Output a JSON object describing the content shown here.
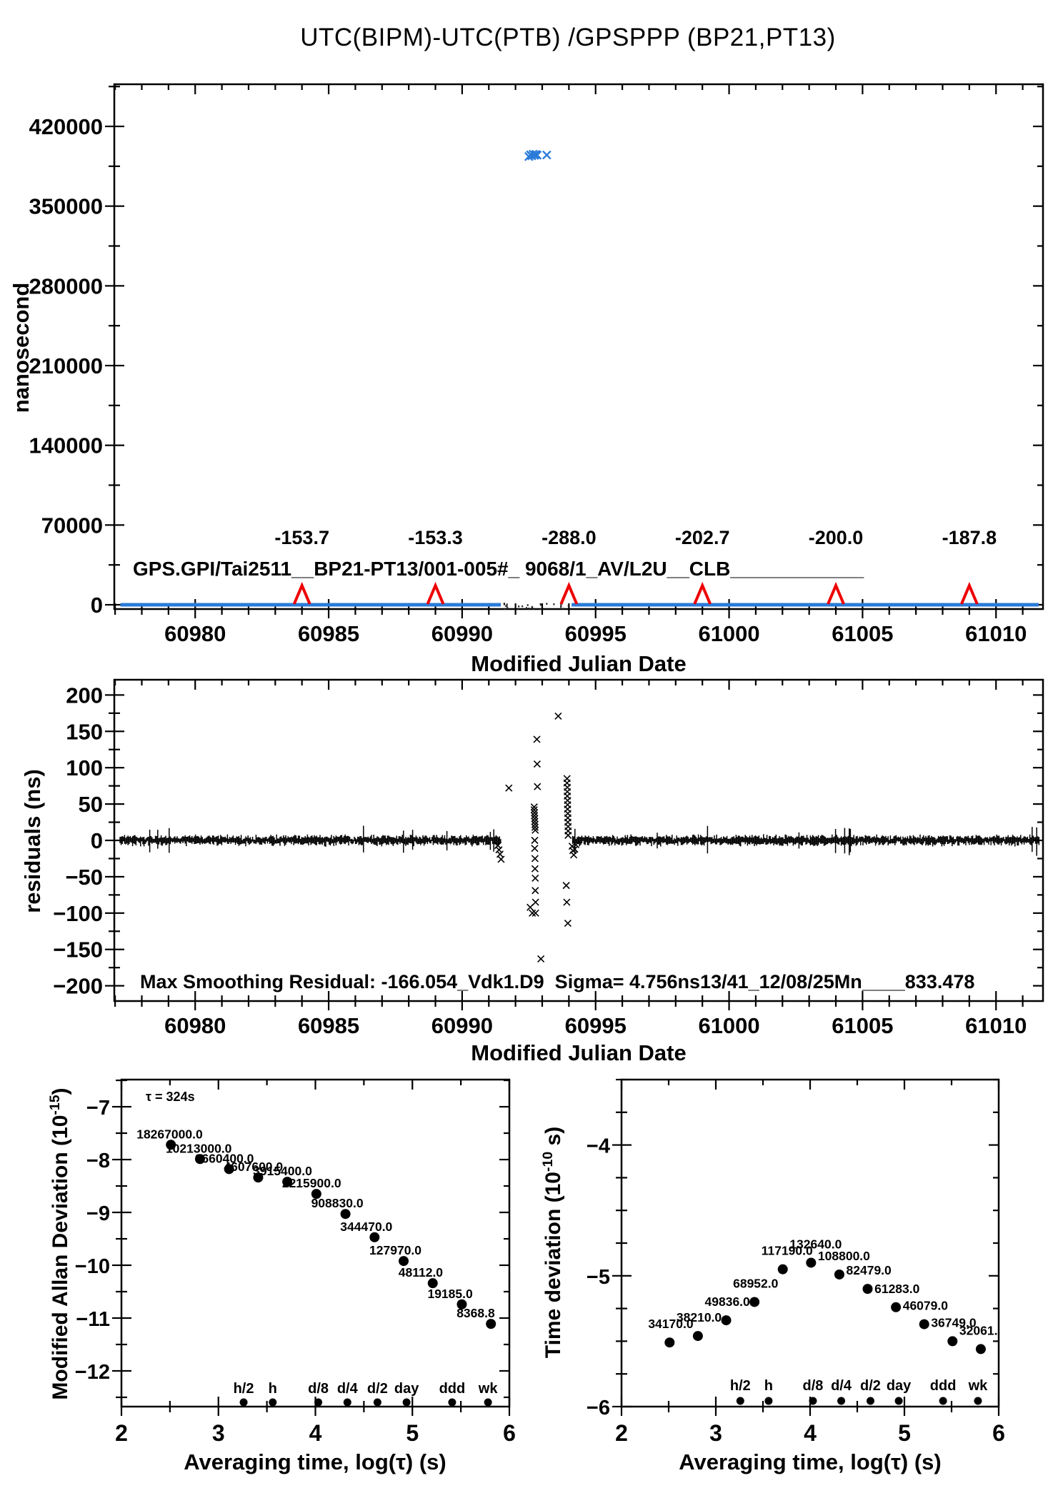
{
  "title": "UTC(BIPM)-UTC(PTB)  /GPSPPP  (BP21,PT13)",
  "colors": {
    "accent_red": "#ee0000",
    "series_blue": "#2b7bd9",
    "ink": "#000000"
  },
  "chart_data": [
    {
      "id": "phase",
      "type": "scatter",
      "ylabel": "nanosecond",
      "xlabel": "Modified Julian Date",
      "annotation": "GPS.GPI/Tai2511__BP21-PT13/001-005#_ 9068/1_AV/L2U__CLB____________",
      "x_ticks": [
        60980,
        60985,
        60990,
        60995,
        61000,
        61005,
        61010
      ],
      "x_minor_step": 1,
      "x_range": [
        60976.97,
        61011.76
      ],
      "y_ticks": [
        0,
        70000,
        140000,
        210000,
        280000,
        350000,
        420000
      ],
      "y_range": [
        -3761,
        457000
      ],
      "grid": "off",
      "baseline_series": {
        "value_ns": 0,
        "segments_mjd": [
          [
            60977.2,
            60991.45
          ],
          [
            60994.1,
            61011.6
          ]
        ]
      },
      "outlier_cluster_ns": [
        [
          60992.5,
          393500
        ],
        [
          60992.56,
          395000
        ],
        [
          60992.61,
          394200
        ],
        [
          60992.66,
          395600
        ],
        [
          60992.71,
          394600
        ],
        [
          60992.76,
          395400
        ],
        [
          60992.81,
          394800
        ],
        [
          60993.17,
          394900
        ]
      ],
      "events": [
        {
          "mjd": 60984,
          "label": "-153.7"
        },
        {
          "mjd": 60989,
          "label": "-153.3"
        },
        {
          "mjd": 60994,
          "label": "-288.0"
        },
        {
          "mjd": 60999,
          "label": "-202.7"
        },
        {
          "mjd": 61004,
          "label": "-200.0"
        },
        {
          "mjd": 61009,
          "label": "-187.8"
        }
      ]
    },
    {
      "id": "residuals",
      "type": "scatter",
      "ylabel": "residuals (ns)",
      "xlabel": "Modified Julian Date",
      "annotation": "Max Smoothing Residual: -166.054_Vdk1.D9  Sigma= 4.756ns13/41_12/08/25Mn____833.478",
      "x_ticks": [
        60980,
        60985,
        60990,
        60995,
        61000,
        61005,
        61010
      ],
      "x_minor_step": 1,
      "x_range": [
        60976.97,
        61011.76
      ],
      "y_ticks": [
        200,
        150,
        100,
        50,
        0,
        -50,
        -100,
        -150,
        -200
      ],
      "y_range": [
        -221,
        221
      ],
      "grid": "off",
      "noise_band": {
        "center_ns": 0,
        "typical_halfwidth_ns": 5,
        "gap_mjd": [
          60991.45,
          60994.1
        ]
      },
      "scatter_points": [
        [
          60991.34,
          -7
        ],
        [
          60991.38,
          -13
        ],
        [
          60991.42,
          -19
        ],
        [
          60991.46,
          -26
        ],
        [
          60991.75,
          72
        ],
        [
          60992.55,
          -92
        ],
        [
          60992.63,
          -100
        ],
        [
          60992.8,
          139
        ],
        [
          60992.81,
          105
        ],
        [
          60992.82,
          74
        ],
        [
          60992.7,
          46
        ],
        [
          60992.7,
          42
        ],
        [
          60992.71,
          38
        ],
        [
          60992.71,
          34
        ],
        [
          60992.72,
          30
        ],
        [
          60992.72,
          26
        ],
        [
          60992.73,
          22
        ],
        [
          60992.73,
          18
        ],
        [
          60992.74,
          14
        ],
        [
          60992.72,
          0
        ],
        [
          60992.72,
          -11
        ],
        [
          60992.73,
          -25
        ],
        [
          60992.73,
          -39
        ],
        [
          60992.74,
          -52
        ],
        [
          60992.74,
          -69
        ],
        [
          60992.75,
          -85
        ],
        [
          60992.75,
          -100
        ],
        [
          60992.95,
          -163
        ],
        [
          60993.6,
          171
        ],
        [
          60993.93,
          85
        ],
        [
          60993.93,
          79
        ],
        [
          60993.94,
          73
        ],
        [
          60993.94,
          67
        ],
        [
          60993.94,
          61
        ],
        [
          60993.95,
          55
        ],
        [
          60993.95,
          49
        ],
        [
          60993.95,
          43
        ],
        [
          60993.96,
          37
        ],
        [
          60993.96,
          31
        ],
        [
          60993.96,
          25
        ],
        [
          60993.97,
          19
        ],
        [
          60993.97,
          13
        ],
        [
          60993.97,
          7
        ],
        [
          60993.9,
          -62
        ],
        [
          60993.92,
          -85
        ],
        [
          60993.96,
          -114
        ],
        [
          60994.12,
          -8
        ],
        [
          60994.15,
          -14
        ],
        [
          60994.18,
          -20
        ],
        [
          60994.22,
          -12
        ],
        [
          60994.26,
          -6
        ]
      ]
    },
    {
      "id": "mdev",
      "type": "scatter",
      "ylabel_prefix": "Modified Allan Deviation (10",
      "ylabel_sup": "-15",
      "ylabel_suffix": ")",
      "xlabel": "Averaging time, log(τ) (s)",
      "note": "τ = 324s",
      "x_ticks": [
        2,
        3,
        4,
        5,
        6
      ],
      "x_minor_step": 0.5,
      "x_range": [
        2,
        6
      ],
      "y_ticks": [
        -7,
        -8,
        -9,
        -10,
        -11,
        -12
      ],
      "y_minor_step": 0.5,
      "y_range": [
        -12.676,
        -6.486
      ],
      "grid": "off",
      "points": {
        "x_log_tau": [
          2.51,
          2.81,
          3.11,
          3.41,
          3.71,
          4.01,
          4.31,
          4.61,
          4.91,
          5.21,
          5.51,
          5.81
        ],
        "y_log_mdev": [
          -7.72,
          -7.99,
          -8.18,
          -8.34,
          -8.42,
          -8.65,
          -9.03,
          -9.47,
          -9.92,
          -10.34,
          -10.74,
          -11.11
        ],
        "labels": [
          "18267000.0",
          "10213000.0",
          "6660400.0",
          "4607600.0",
          "3915400.0",
          "2215900.0",
          "908830.0",
          "344470.0",
          "127970.0",
          "48112.0",
          "19185.0",
          "8368.8"
        ]
      },
      "duration_marks": {
        "labels": [
          "h/2",
          "h",
          "d/8",
          "d/4",
          "d/2",
          "day",
          "ddd",
          "wk"
        ],
        "x_log_tau": [
          3.26,
          3.56,
          4.03,
          4.33,
          4.64,
          4.94,
          5.41,
          5.78
        ]
      }
    },
    {
      "id": "tdev",
      "type": "scatter",
      "ylabel_prefix": "Time deviation (10",
      "ylabel_sup": "-10",
      "ylabel_suffix": " s)",
      "xlabel": "Averaging time, log(τ) (s)",
      "x_ticks": [
        2,
        3,
        4,
        5,
        6
      ],
      "x_minor_step": 0.5,
      "x_range": [
        2,
        6
      ],
      "y_ticks": [
        -4,
        -5,
        -6
      ],
      "y_minor_step": 0.25,
      "y_range": [
        -6,
        -3.5
      ],
      "grid": "off",
      "points": {
        "x_log_tau": [
          2.51,
          2.81,
          3.11,
          3.41,
          3.71,
          4.01,
          4.31,
          4.61,
          4.91,
          5.21,
          5.51,
          5.81
        ],
        "y_log_tdev": [
          -5.51,
          -5.46,
          -5.34,
          -5.2,
          -4.95,
          -4.9,
          -4.99,
          -5.1,
          -5.24,
          -5.37,
          -5.5,
          -5.56
        ],
        "labels": [
          "34170.0",
          "38210.0",
          "49836.0",
          "68952.0",
          "117190.0",
          "132640.0",
          "108800.0",
          "82479.0",
          "61283.0",
          "46079.0",
          "36749.0",
          "32061."
        ]
      },
      "duration_marks": {
        "labels": [
          "h/2",
          "h",
          "d/8",
          "d/4",
          "d/2",
          "day",
          "ddd",
          "wk"
        ],
        "x_log_tau": [
          3.26,
          3.56,
          4.03,
          4.33,
          4.64,
          4.94,
          5.41,
          5.78
        ]
      }
    }
  ]
}
